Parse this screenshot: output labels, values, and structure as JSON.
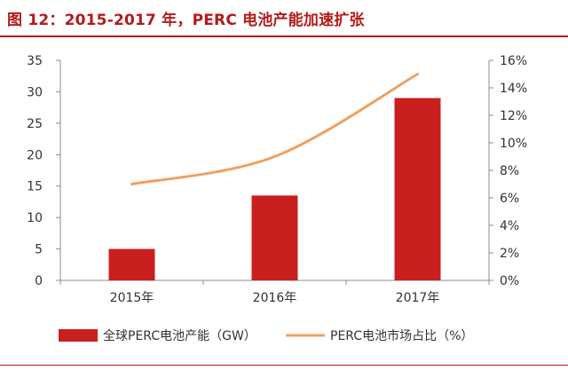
{
  "figure_title": "图 12：2015-2017 年，PERC 电池产能加速扩张",
  "colors": {
    "title": "#b31b1b",
    "bar": "#c8201e",
    "line": "#f0a060",
    "axis": "#8c8c8c",
    "text": "#333333"
  },
  "chart_data": {
    "type": "bar",
    "categories": [
      "2015年",
      "2016年",
      "2017年"
    ],
    "series": [
      {
        "name": "全球PERC电池产能（GW）",
        "type": "bar",
        "axis": "left",
        "values": [
          5,
          13.5,
          29
        ]
      },
      {
        "name": "PERC电池市场占比（%）",
        "type": "line",
        "axis": "right",
        "values": [
          7,
          9,
          15
        ]
      }
    ],
    "y_left": {
      "min": 0,
      "max": 35,
      "ticks": [
        0,
        5,
        10,
        15,
        20,
        25,
        30,
        35
      ]
    },
    "y_right": {
      "min": 0,
      "max": 16,
      "ticks": [
        "0%",
        "2%",
        "4%",
        "6%",
        "8%",
        "10%",
        "12%",
        "14%",
        "16%"
      ]
    },
    "grid": false,
    "legend": "bottom"
  }
}
